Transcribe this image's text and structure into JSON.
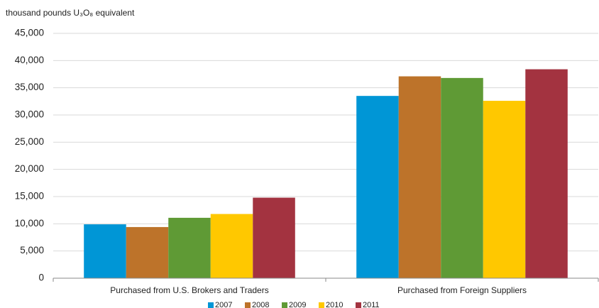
{
  "chart_data": {
    "type": "bar",
    "y_label": "thousand pounds U₃O₈ equivalent",
    "categories": [
      "Purchased from U.S. Brokers and Traders",
      "Purchased from Foreign Suppliers"
    ],
    "series": [
      {
        "name": "2007",
        "color": "#0096d6",
        "values": [
          9900,
          33500
        ]
      },
      {
        "name": "2008",
        "color": "#bd732a",
        "values": [
          9400,
          37100
        ]
      },
      {
        "name": "2009",
        "color": "#5f9a35",
        "values": [
          11100,
          36800
        ]
      },
      {
        "name": "2010",
        "color": "#ffc800",
        "values": [
          11800,
          32600
        ]
      },
      {
        "name": "2011",
        "color": "#a33340",
        "values": [
          14800,
          38400
        ]
      }
    ],
    "ylim": [
      0,
      45000
    ],
    "yticks": [
      0,
      {
        "value": 5000,
        "label": "5,000"
      },
      {
        "value": 10000,
        "label": "10,000"
      },
      {
        "value": 15000,
        "label": "15,000"
      },
      {
        "value": 20000,
        "label": "20,000"
      },
      {
        "value": 25000,
        "label": "25,000"
      },
      {
        "value": 30000,
        "label": "30,000"
      },
      {
        "value": 35000,
        "label": "35,000"
      },
      {
        "value": 40000,
        "label": "40,000"
      },
      {
        "value": 45000,
        "label": "45,000"
      }
    ],
    "grid": true,
    "legend": "bottom"
  }
}
